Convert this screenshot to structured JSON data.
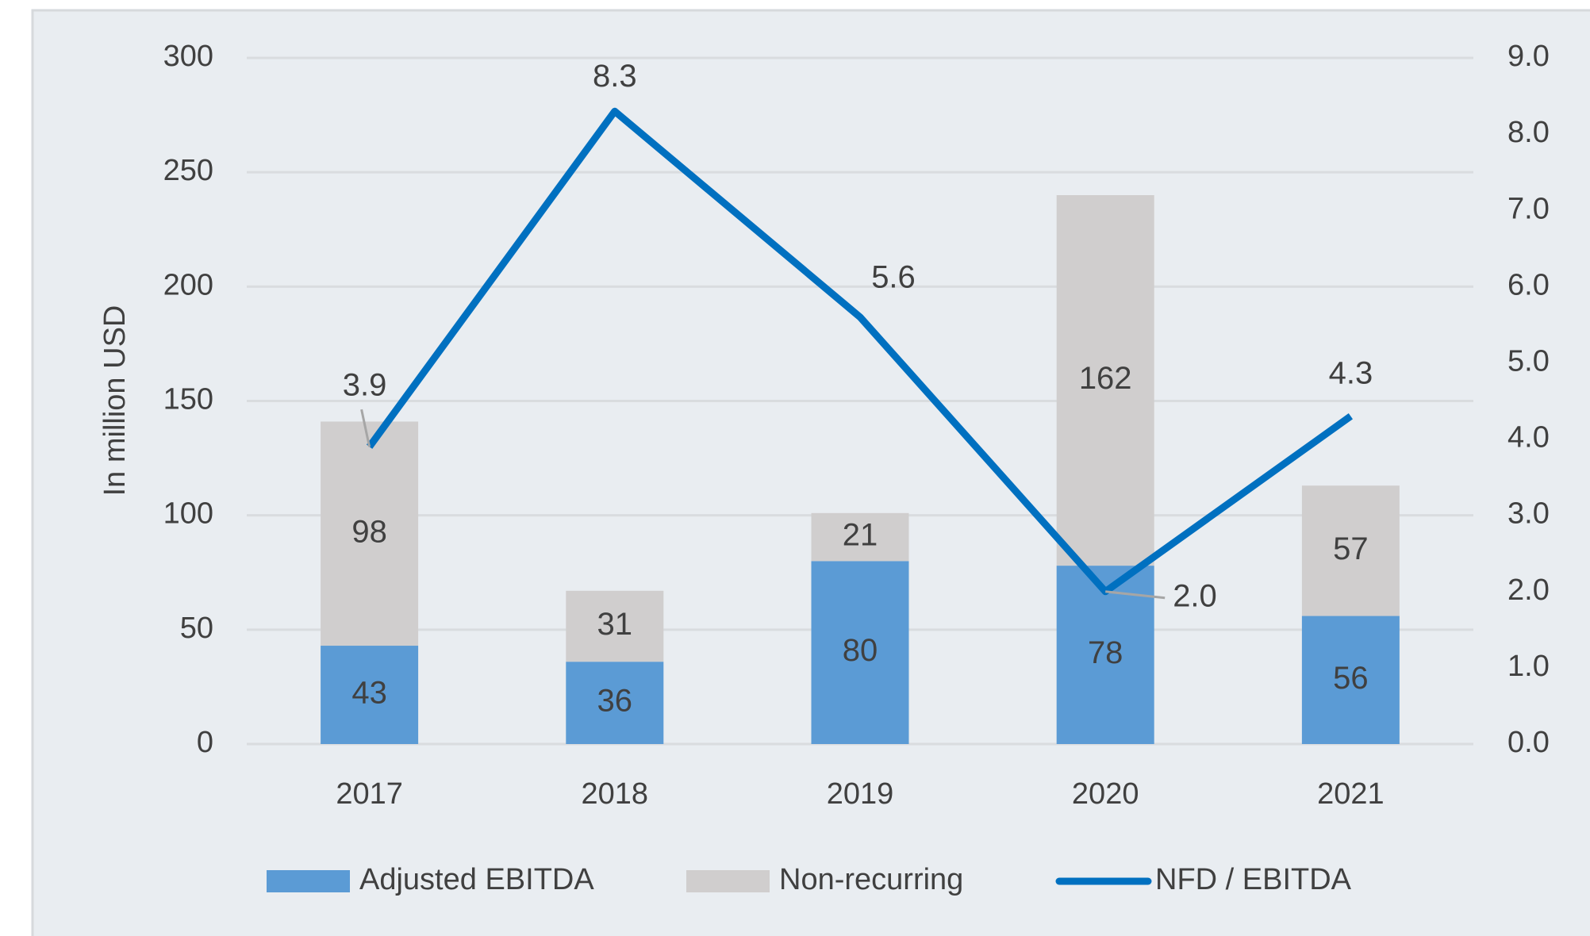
{
  "chart_data": {
    "type": "bar",
    "categories": [
      "2017",
      "2018",
      "2019",
      "2020",
      "2021"
    ],
    "y_label": "In million USD",
    "ylim": [
      0,
      300
    ],
    "yticks": [
      0,
      50,
      100,
      150,
      200,
      250,
      300
    ],
    "y2lim": [
      0,
      9
    ],
    "y2ticks": [
      {
        "value": 0,
        "label": "0.0"
      },
      {
        "value": 1,
        "label": "1.0"
      },
      {
        "value": 2,
        "label": "2.0"
      },
      {
        "value": 3,
        "label": "3.0"
      },
      {
        "value": 4,
        "label": "4.0"
      },
      {
        "value": 5,
        "label": "5.0"
      },
      {
        "value": 6,
        "label": "6.0"
      },
      {
        "value": 7,
        "label": "7.0"
      },
      {
        "value": 8,
        "label": "8.0"
      },
      {
        "value": 9,
        "label": "9.0"
      }
    ],
    "grid": true,
    "stacked": true,
    "legend": "bottom",
    "series": [
      {
        "name": "Adjusted EBITDA",
        "type": "bar",
        "color": "#5b9bd5",
        "values": [
          43,
          36,
          80,
          78,
          56
        ]
      },
      {
        "name": "Non-recurring",
        "type": "bar",
        "color": "#d0cece",
        "values": [
          98,
          31,
          21,
          162,
          57
        ]
      },
      {
        "name": "NFD / EBITDA",
        "type": "line",
        "axis": "y2",
        "color": "#0070c0",
        "values": [
          3.9,
          8.3,
          5.6,
          2.0,
          4.3
        ],
        "value_labels": [
          "3.9",
          "8.3",
          "5.6",
          "2.0",
          "4.3"
        ]
      }
    ]
  }
}
